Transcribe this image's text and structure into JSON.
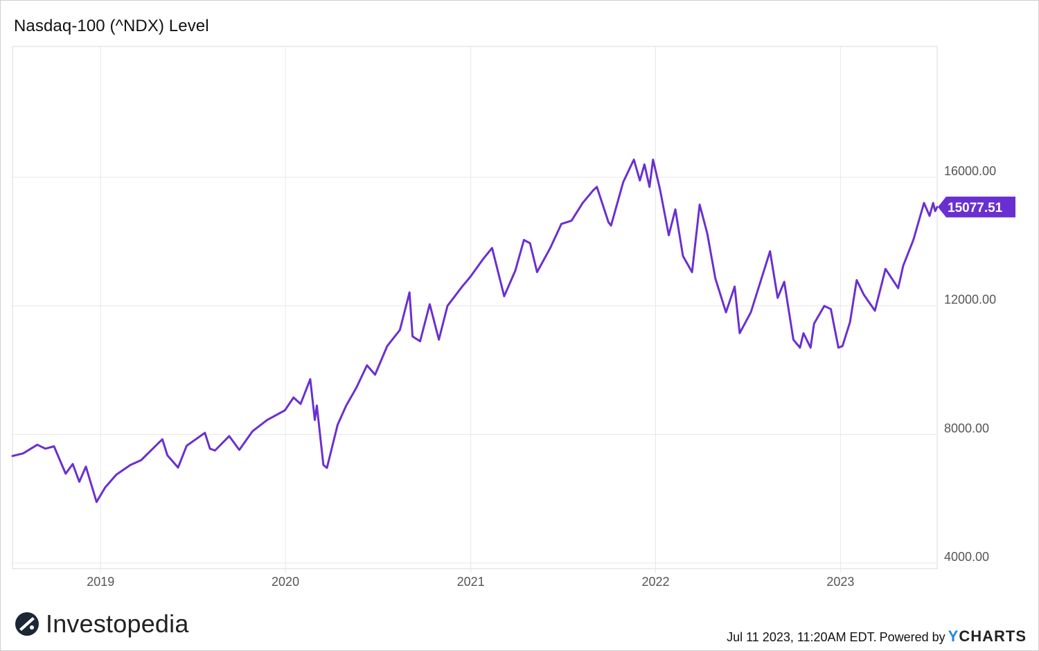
{
  "title": "Nasdaq-100 (^NDX) Level",
  "brand": {
    "name": "Investopedia"
  },
  "footer": {
    "timestamp": "Jul 11 2023, 11:20AM EDT.",
    "powered_by": "Powered by",
    "provider": "CHARTS",
    "provider_mark": "Y"
  },
  "colors": {
    "line": "#6a2fd0",
    "grid": "#e6e6e6",
    "axis_text": "#555555",
    "badge_bg": "#6a2fd0",
    "badge_text": "#ffffff"
  },
  "chart_data": {
    "type": "line",
    "title": "Nasdaq-100 (^NDX) Level",
    "xlabel": "",
    "ylabel": "",
    "xlim": [
      "2018-07-11",
      "2023-07-11"
    ],
    "ylim": [
      4000,
      16000
    ],
    "x_ticks": [
      "2019",
      "2020",
      "2021",
      "2022",
      "2023"
    ],
    "y_ticks": [
      "16000.00",
      "12000.00",
      "8000.00",
      "4000.00"
    ],
    "y_tick_values": [
      16000,
      12000,
      8000,
      4000
    ],
    "grid": true,
    "last_value_label": "15077.51",
    "series": [
      {
        "values": [
          [
            "2018-07-11",
            7330
          ],
          [
            "2018-08-01",
            7410
          ],
          [
            "2018-08-29",
            7680
          ],
          [
            "2018-09-14",
            7560
          ],
          [
            "2018-10-01",
            7630
          ],
          [
            "2018-10-24",
            6780
          ],
          [
            "2018-11-07",
            7080
          ],
          [
            "2018-11-20",
            6530
          ],
          [
            "2018-12-03",
            7000
          ],
          [
            "2018-12-24",
            5900
          ],
          [
            "2019-01-10",
            6350
          ],
          [
            "2019-02-01",
            6750
          ],
          [
            "2019-03-01",
            7050
          ],
          [
            "2019-03-22",
            7200
          ],
          [
            "2019-04-20",
            7650
          ],
          [
            "2019-05-03",
            7850
          ],
          [
            "2019-05-13",
            7350
          ],
          [
            "2019-06-03",
            6970
          ],
          [
            "2019-06-20",
            7650
          ],
          [
            "2019-07-26",
            8050
          ],
          [
            "2019-08-05",
            7560
          ],
          [
            "2019-08-15",
            7500
          ],
          [
            "2019-09-12",
            7950
          ],
          [
            "2019-10-02",
            7520
          ],
          [
            "2019-10-28",
            8100
          ],
          [
            "2019-11-26",
            8450
          ],
          [
            "2019-12-31",
            8750
          ],
          [
            "2020-01-17",
            9150
          ],
          [
            "2020-01-31",
            8950
          ],
          [
            "2020-02-19",
            9720
          ],
          [
            "2020-02-28",
            8450
          ],
          [
            "2020-03-03",
            8900
          ],
          [
            "2020-03-16",
            7050
          ],
          [
            "2020-03-23",
            6960
          ],
          [
            "2020-04-13",
            8300
          ],
          [
            "2020-04-30",
            8900
          ],
          [
            "2020-05-20",
            9450
          ],
          [
            "2020-06-10",
            10150
          ],
          [
            "2020-06-26",
            9860
          ],
          [
            "2020-07-20",
            10750
          ],
          [
            "2020-08-14",
            11250
          ],
          [
            "2020-09-02",
            12420
          ],
          [
            "2020-09-08",
            11050
          ],
          [
            "2020-09-23",
            10900
          ],
          [
            "2020-10-12",
            12050
          ],
          [
            "2020-10-30",
            10950
          ],
          [
            "2020-11-16",
            12000
          ],
          [
            "2020-12-15",
            12600
          ],
          [
            "2020-12-31",
            12900
          ],
          [
            "2021-01-25",
            13450
          ],
          [
            "2021-02-12",
            13800
          ],
          [
            "2021-03-08",
            12300
          ],
          [
            "2021-03-30",
            13100
          ],
          [
            "2021-04-16",
            14050
          ],
          [
            "2021-04-28",
            13950
          ],
          [
            "2021-05-12",
            13050
          ],
          [
            "2021-06-07",
            13800
          ],
          [
            "2021-06-29",
            14550
          ],
          [
            "2021-07-19",
            14650
          ],
          [
            "2021-08-10",
            15200
          ],
          [
            "2021-08-31",
            15600
          ],
          [
            "2021-09-07",
            15700
          ],
          [
            "2021-09-30",
            14600
          ],
          [
            "2021-10-05",
            14500
          ],
          [
            "2021-10-29",
            15850
          ],
          [
            "2021-11-19",
            16550
          ],
          [
            "2021-12-01",
            15900
          ],
          [
            "2021-12-10",
            16400
          ],
          [
            "2021-12-20",
            15700
          ],
          [
            "2021-12-27",
            16550
          ],
          [
            "2022-01-10",
            15600
          ],
          [
            "2022-01-27",
            14200
          ],
          [
            "2022-02-09",
            15000
          ],
          [
            "2022-02-24",
            13550
          ],
          [
            "2022-03-14",
            13050
          ],
          [
            "2022-03-29",
            15150
          ],
          [
            "2022-04-13",
            14250
          ],
          [
            "2022-04-29",
            12850
          ],
          [
            "2022-05-20",
            11800
          ],
          [
            "2022-06-06",
            12600
          ],
          [
            "2022-06-16",
            11150
          ],
          [
            "2022-07-08",
            11800
          ],
          [
            "2022-08-15",
            13700
          ],
          [
            "2022-08-30",
            12250
          ],
          [
            "2022-09-12",
            12750
          ],
          [
            "2022-09-30",
            10950
          ],
          [
            "2022-10-13",
            10700
          ],
          [
            "2022-10-20",
            11150
          ],
          [
            "2022-11-03",
            10700
          ],
          [
            "2022-11-10",
            11450
          ],
          [
            "2022-11-30",
            12000
          ],
          [
            "2022-12-13",
            11900
          ],
          [
            "2022-12-28",
            10700
          ],
          [
            "2023-01-05",
            10750
          ],
          [
            "2023-01-20",
            11500
          ],
          [
            "2023-02-02",
            12800
          ],
          [
            "2023-02-16",
            12350
          ],
          [
            "2023-03-10",
            11850
          ],
          [
            "2023-03-31",
            13150
          ],
          [
            "2023-04-25",
            12550
          ],
          [
            "2023-05-05",
            13250
          ],
          [
            "2023-05-25",
            14050
          ],
          [
            "2023-06-15",
            15200
          ],
          [
            "2023-06-26",
            14800
          ],
          [
            "2023-07-03",
            15200
          ],
          [
            "2023-07-07",
            14950
          ],
          [
            "2023-07-11",
            15077.51
          ]
        ]
      }
    ]
  }
}
